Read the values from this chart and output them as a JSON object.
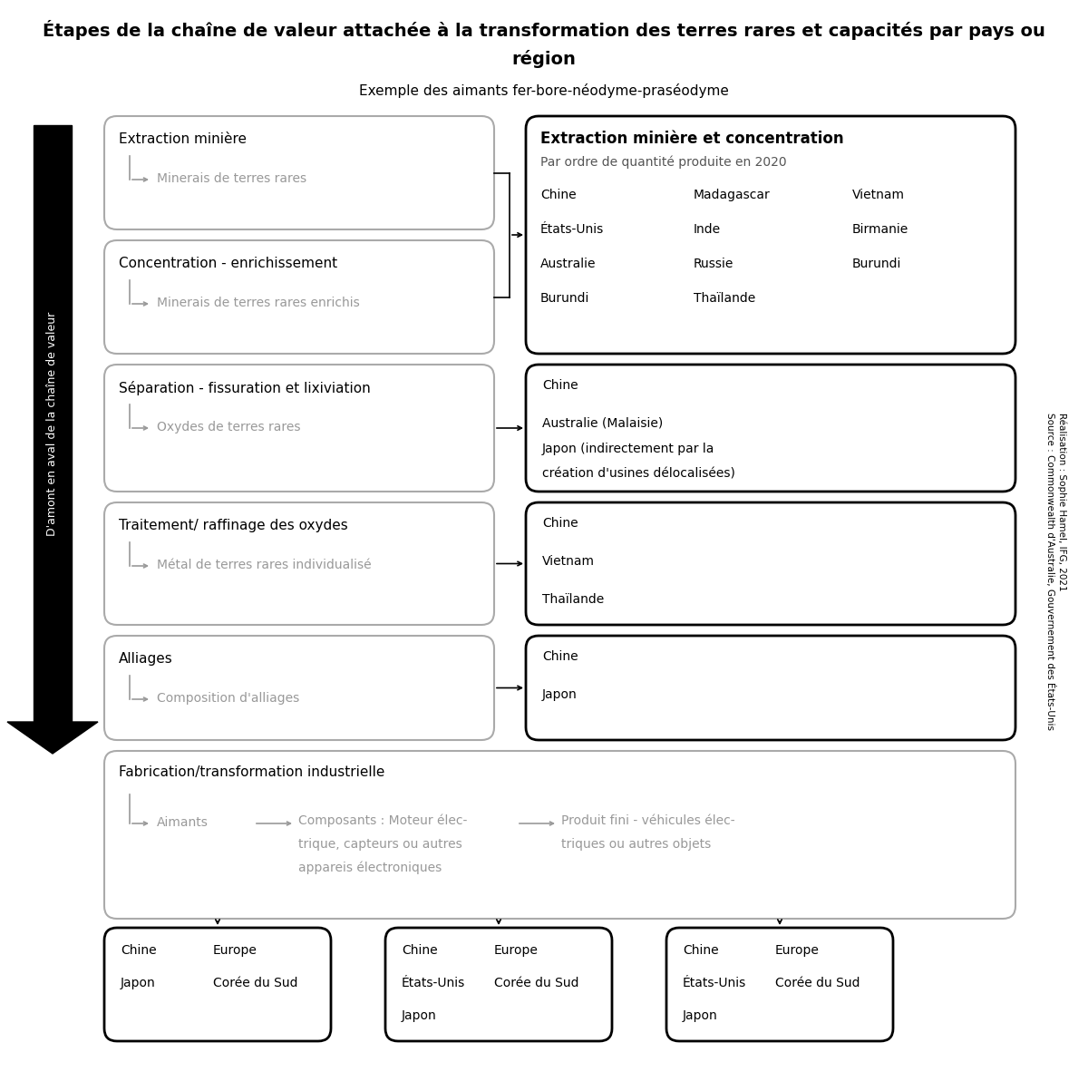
{
  "title_line1": "Étapes de la chaîne de valeur attachée à la transformation des terres rares et capacités par pays ou",
  "title_line2": "région",
  "subtitle": "Exemple des aimants fer-bore-néodyme-praséodyme",
  "source_text": "Réalisation : Sophie Hamel, IFG, 2021\nSource : Commonwealth d'Australie, Gouvernement des États-Unis",
  "arrow_label": "D'amont en aval de la chaîne de valeur",
  "left_boxes": [
    {
      "title": "Extraction minière",
      "subtitle": "Minerais de terres rares",
      "border_color": "#aaaaaa",
      "title_color": "#000000",
      "subtitle_color": "#999999"
    },
    {
      "title": "Concentration - enrichissement",
      "subtitle": "Minerais de terres rares enrichis",
      "border_color": "#aaaaaa",
      "title_color": "#000000",
      "subtitle_color": "#999999"
    },
    {
      "title": "Séparation - fissuration et lixiviation",
      "subtitle": "Oxydes de terres rares",
      "border_color": "#aaaaaa",
      "title_color": "#000000",
      "subtitle_color": "#999999"
    },
    {
      "title": "Traitement/ raffinage des oxydes",
      "subtitle": "Métal de terres rares individualisé",
      "border_color": "#aaaaaa",
      "title_color": "#000000",
      "subtitle_color": "#999999"
    },
    {
      "title": "Alliages",
      "subtitle": "Composition d'alliages",
      "border_color": "#aaaaaa",
      "title_color": "#000000",
      "subtitle_color": "#999999"
    }
  ],
  "upper_right_box": {
    "title": "Extraction minière et concentration",
    "subtitle": "Par ordre de quantité produite en 2020",
    "col1": [
      "Chine",
      "États-Unis",
      "Australie",
      "Burundi"
    ],
    "col2": [
      "Madagascar",
      "Inde",
      "Russie",
      "Thaïlande"
    ],
    "col3": [
      "Vietnam",
      "Birmanie",
      "Burundi",
      ""
    ],
    "border_color": "#000000",
    "title_color": "#000000",
    "subtitle_color": "#555555",
    "content_color": "#000000"
  },
  "right_boxes": [
    {
      "lines": [
        "Chine",
        "",
        "Australie (Malaisie)",
        "Japon (indirectement par la",
        "création d'usines délocalisées)"
      ],
      "border_color": "#000000",
      "content_color": "#000000"
    },
    {
      "lines": [
        "Chine",
        "",
        "Vietnam",
        "",
        "Thaïlande"
      ],
      "border_color": "#000000",
      "content_color": "#000000"
    },
    {
      "lines": [
        "Chine",
        "",
        "Japon"
      ],
      "border_color": "#000000",
      "content_color": "#000000"
    }
  ],
  "fab_box": {
    "title": "Fabrication/transformation industrielle",
    "sub1": "Aimants",
    "sub2_lines": [
      "Composants : Moteur élec-",
      "trique, capteurs ou autres",
      "appareis électroniques"
    ],
    "sub3_lines": [
      "Produit fini - véhicules élec-",
      "triques ou autres objets"
    ],
    "border_color": "#aaaaaa",
    "title_color": "#000000",
    "sub_color": "#999999"
  },
  "bottom_boxes": [
    {
      "col1": [
        "Chine",
        "Japon"
      ],
      "col2": [
        "Europe",
        "Corée du Sud"
      ],
      "border_color": "#000000",
      "content_color": "#000000"
    },
    {
      "col1": [
        "Chine",
        "États-Unis",
        "Japon"
      ],
      "col2": [
        "Europe",
        "Corée du Sud",
        ""
      ],
      "border_color": "#000000",
      "content_color": "#000000"
    },
    {
      "col1": [
        "Chine",
        "États-Unis",
        "Japon"
      ],
      "col2": [
        "Europe",
        "Corée du Sud",
        ""
      ],
      "border_color": "#000000",
      "content_color": "#000000"
    }
  ]
}
